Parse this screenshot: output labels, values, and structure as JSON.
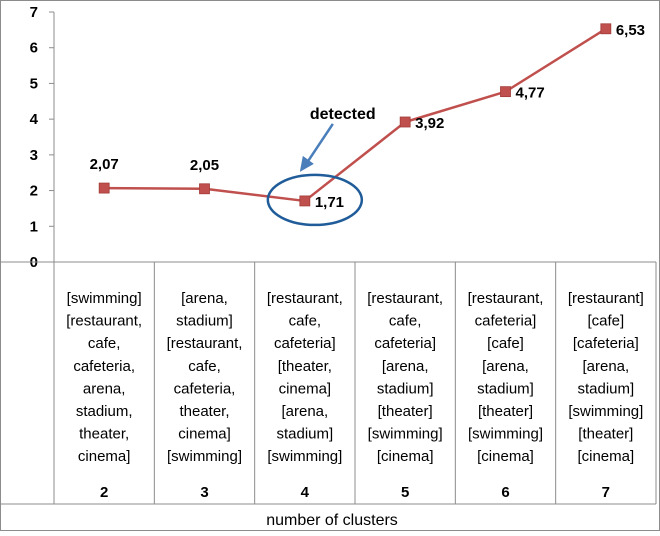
{
  "chart_data": {
    "type": "line",
    "categories": [
      "2",
      "3",
      "4",
      "5",
      "6",
      "7"
    ],
    "series": [
      {
        "values": [
          2.07,
          2.05,
          1.71,
          3.92,
          4.77,
          6.53
        ],
        "color": "#c0504d"
      }
    ],
    "data_labels": [
      "2,07",
      "2,05",
      "1,71",
      "3,92",
      "4,77",
      "6,53"
    ],
    "category_groups": [
      [
        "[swimming]",
        "[restaurant,",
        "cafe,",
        "cafeteria,",
        "arena,",
        "stadium,",
        "theater,",
        "cinema]"
      ],
      [
        "[arena,",
        "stadium]",
        "[restaurant,",
        "cafe,",
        "cafeteria,",
        "theater,",
        "cinema]",
        "[swimming]"
      ],
      [
        "[restaurant,",
        "cafe,",
        "cafeteria]",
        "[theater,",
        "cinema]",
        "[arena,",
        "stadium]",
        "[swimming]"
      ],
      [
        "[restaurant,",
        "cafe,",
        "cafeteria]",
        "[arena,",
        "stadium]",
        "[theater]",
        "[swimming]",
        "[cinema]"
      ],
      [
        "[restaurant,",
        "cafeteria]",
        "[cafe]",
        "[arena,",
        "stadium]",
        "[theater]",
        "[swimming]",
        "[cinema]"
      ],
      [
        "[restaurant]",
        "[cafe]",
        "[cafeteria]",
        "[arena,",
        "stadium]",
        "[swimming]",
        "[theater]",
        "[cinema]"
      ]
    ],
    "xlabel": "number of clusters",
    "ylabel": "",
    "ylim": [
      0,
      7
    ],
    "yticks": [
      "0",
      "1",
      "2",
      "3",
      "4",
      "5",
      "6",
      "7"
    ],
    "grid": false,
    "legend": "none",
    "annotation": {
      "text": "detected",
      "target_index": 2,
      "color": "#1f5c99"
    }
  }
}
